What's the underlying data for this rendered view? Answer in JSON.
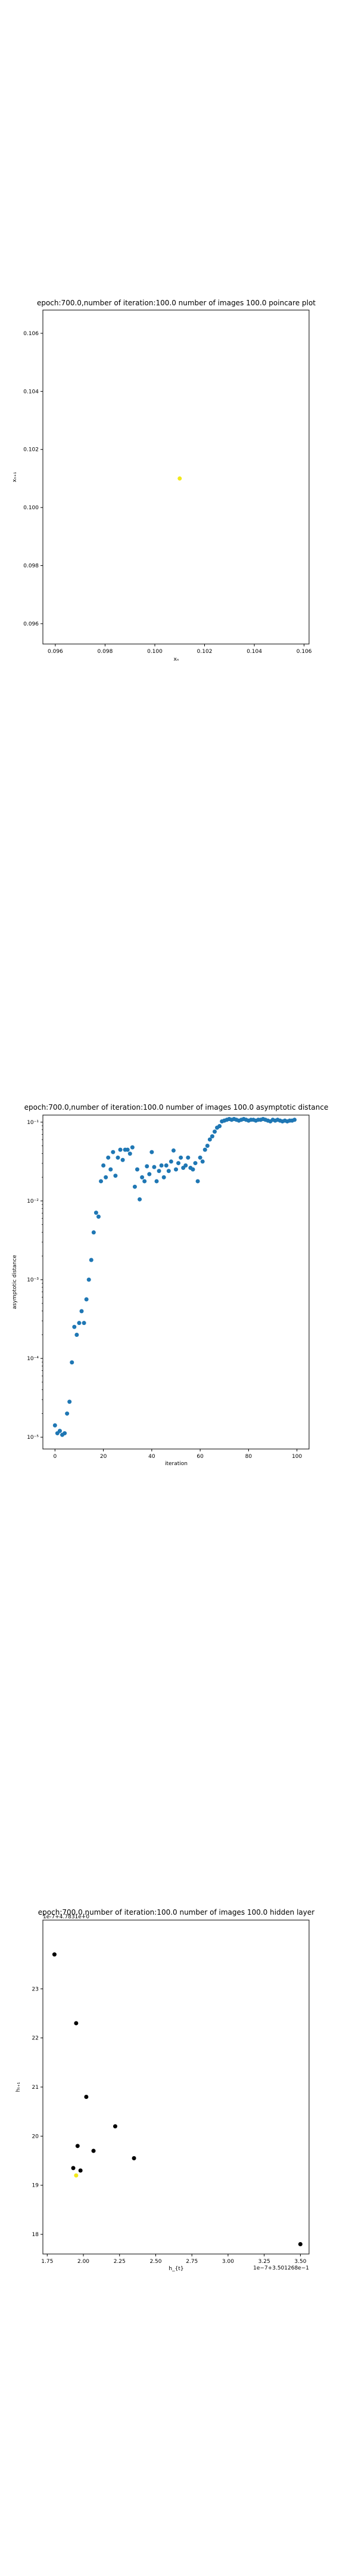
{
  "chart_data": [
    {
      "type": "scatter",
      "title": "epoch:700.0,number of iteration:100.0 number of images 100.0 poincare plot",
      "xlabel": "xₙ",
      "ylabel": "xₙ₊₁",
      "xlim": [
        0.0955,
        0.1062
      ],
      "ylim": [
        0.0953,
        0.1068
      ],
      "xticks": [
        0.096,
        0.098,
        0.1,
        0.102,
        0.104,
        0.106
      ],
      "yticks": [
        0.096,
        0.098,
        0.1,
        0.102,
        0.104,
        0.106
      ],
      "xtick_labels": [
        "0.096",
        "0.098",
        "0.100",
        "0.102",
        "0.104",
        "0.106"
      ],
      "ytick_labels": [
        "0.096",
        "0.098",
        "0.100",
        "0.102",
        "0.104",
        "0.106"
      ],
      "color": "#f2e81a",
      "points": [
        {
          "x": 0.101,
          "y": 0.101
        }
      ],
      "grid": false
    },
    {
      "type": "scatter",
      "title": "epoch:700.0,number of iteration:100.0  number of images 100.0 asymptotic distance",
      "xlabel": "iteration",
      "ylabel": "asymptotic distance",
      "xlim": [
        -5,
        105
      ],
      "ylim_log10": [
        -5.15,
        -0.91
      ],
      "log_y": true,
      "xticks": [
        0,
        20,
        40,
        60,
        80,
        100
      ],
      "xtick_labels": [
        "0",
        "20",
        "40",
        "60",
        "80",
        "100"
      ],
      "yticks_log10": [
        -5,
        -4,
        -3,
        -2,
        -1
      ],
      "ytick_labels": [
        "10⁻⁵",
        "10⁻⁴",
        "10⁻³",
        "10⁻²",
        "10⁻¹"
      ],
      "color": "#1f77b4",
      "x": [
        0,
        1,
        2,
        3,
        4,
        5,
        6,
        7,
        8,
        9,
        10,
        11,
        12,
        13,
        14,
        15,
        16,
        17,
        18,
        19,
        20,
        21,
        22,
        23,
        24,
        25,
        26,
        27,
        28,
        29,
        30,
        31,
        32,
        33,
        34,
        35,
        36,
        37,
        38,
        39,
        40,
        41,
        42,
        43,
        44,
        45,
        46,
        47,
        48,
        49,
        50,
        51,
        52,
        53,
        54,
        55,
        56,
        57,
        58,
        59,
        60,
        61,
        62,
        63,
        64,
        65,
        66,
        67,
        68,
        69,
        70,
        71,
        72,
        73,
        74,
        75,
        76,
        77,
        78,
        79,
        80,
        81,
        82,
        83,
        84,
        85,
        86,
        87,
        88,
        89,
        90,
        91,
        92,
        93,
        94,
        95,
        96,
        97,
        98,
        99
      ],
      "y_log10": [
        -4.85,
        -4.95,
        -4.92,
        -4.97,
        -4.95,
        -4.7,
        -4.55,
        -4.05,
        -3.6,
        -3.7,
        -3.55,
        -3.4,
        -3.55,
        -3.25,
        -3.0,
        -2.75,
        -2.4,
        -2.15,
        -2.2,
        -1.75,
        -1.55,
        -1.7,
        -1.45,
        -1.6,
        -1.38,
        -1.68,
        -1.45,
        -1.35,
        -1.48,
        -1.35,
        -1.35,
        -1.4,
        -1.32,
        -1.82,
        -1.6,
        -1.98,
        -1.7,
        -1.75,
        -1.56,
        -1.66,
        -1.38,
        -1.57,
        -1.75,
        -1.62,
        -1.55,
        -1.7,
        -1.55,
        -1.62,
        -1.5,
        -1.36,
        -1.6,
        -1.52,
        -1.45,
        -1.58,
        -1.55,
        -1.45,
        -1.58,
        -1.6,
        -1.52,
        -1.75,
        -1.45,
        -1.5,
        -1.35,
        -1.3,
        -1.22,
        -1.18,
        -1.12,
        -1.07,
        -1.05,
        -0.99,
        -0.98,
        -0.97,
        -0.96,
        -0.97,
        -0.96,
        -0.97,
        -0.98,
        -0.97,
        -0.96,
        -0.97,
        -0.98,
        -0.97,
        -0.97,
        -0.98,
        -0.97,
        -0.97,
        -0.96,
        -0.97,
        -0.98,
        -0.99,
        -0.97,
        -0.98,
        -0.97,
        -0.98,
        -0.99,
        -0.98,
        -0.99,
        -0.98,
        -0.98,
        -0.97
      ],
      "grid": false
    },
    {
      "type": "scatter",
      "title": "epoch:700.0,number of iteration:100.0  number of images 100.0 hidden layer",
      "offset_text_top": "1e-7+4.7831e+0",
      "offset_text_bottom": "1e−7+3.501268e−1",
      "xlabel": "h_{t}",
      "ylabel": "hₜ₊₁",
      "xlim": [
        1.72,
        3.56
      ],
      "ylim": [
        17.6,
        24.4
      ],
      "xticks": [
        1.75,
        2.0,
        2.25,
        2.5,
        2.75,
        3.0,
        3.25,
        3.5
      ],
      "xtick_labels": [
        "1.75",
        "2.00",
        "2.25",
        "2.50",
        "2.75",
        "3.00",
        "3.25",
        "3.50"
      ],
      "yticks": [
        18,
        19,
        20,
        21,
        22,
        23
      ],
      "ytick_labels": [
        "18",
        "19",
        "20",
        "21",
        "22",
        "23"
      ],
      "points": [
        {
          "x": 1.8,
          "y": 23.7,
          "color": "#000000"
        },
        {
          "x": 1.95,
          "y": 22.3,
          "color": "#000000"
        },
        {
          "x": 2.02,
          "y": 20.8,
          "color": "#000000"
        },
        {
          "x": 2.22,
          "y": 20.2,
          "color": "#000000"
        },
        {
          "x": 1.96,
          "y": 19.8,
          "color": "#000000"
        },
        {
          "x": 2.07,
          "y": 19.7,
          "color": "#000000"
        },
        {
          "x": 2.35,
          "y": 19.55,
          "color": "#000000"
        },
        {
          "x": 1.93,
          "y": 19.35,
          "color": "#000000"
        },
        {
          "x": 1.98,
          "y": 19.3,
          "color": "#000000"
        },
        {
          "x": 1.95,
          "y": 19.2,
          "color": "#f2e81a"
        },
        {
          "x": 3.5,
          "y": 17.8,
          "color": "#000000"
        }
      ],
      "grid": false
    }
  ]
}
